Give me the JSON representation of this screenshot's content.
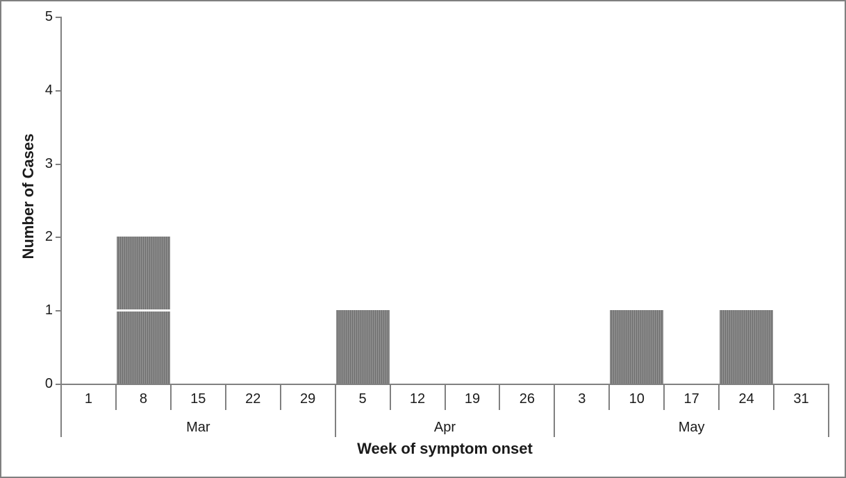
{
  "chart_data": {
    "type": "bar",
    "subtype": "epidemic-curve-stacked-unit-cases",
    "title": "",
    "xlabel": "Week of symptom onset",
    "ylabel": "Number of Cases",
    "ylim": [
      0,
      5
    ],
    "yticks": [
      0,
      1,
      2,
      3,
      4,
      5
    ],
    "grid": "off",
    "legend": "none",
    "categories": [
      "Mar 1",
      "Mar 8",
      "Mar 15",
      "Mar 22",
      "Mar 29",
      "Apr 5",
      "Apr 12",
      "Apr 19",
      "Apr 26",
      "May 3",
      "May 10",
      "May 17",
      "May 24",
      "May 31"
    ],
    "values": [
      0,
      2,
      0,
      0,
      0,
      1,
      0,
      0,
      0,
      0,
      1,
      0,
      1,
      0
    ],
    "months": [
      {
        "label": "Mar",
        "weeks": [
          {
            "label": "1",
            "cases": 0
          },
          {
            "label": "8",
            "cases": 2
          },
          {
            "label": "15",
            "cases": 0
          },
          {
            "label": "22",
            "cases": 0
          },
          {
            "label": "29",
            "cases": 0
          }
        ]
      },
      {
        "label": "Apr",
        "weeks": [
          {
            "label": "5",
            "cases": 1
          },
          {
            "label": "12",
            "cases": 0
          },
          {
            "label": "19",
            "cases": 0
          },
          {
            "label": "26",
            "cases": 0
          }
        ]
      },
      {
        "label": "May",
        "weeks": [
          {
            "label": "3",
            "cases": 0
          },
          {
            "label": "10",
            "cases": 1
          },
          {
            "label": "17",
            "cases": 0
          },
          {
            "label": "24",
            "cases": 1
          },
          {
            "label": "31",
            "cases": 0
          }
        ]
      }
    ],
    "colors": {
      "bar_stripe_light": "#8b8b8b",
      "bar_stripe_dark": "#6e6e6e",
      "bar_segment_divider": "#ffffff",
      "axis": "#808080",
      "frame_border": "#808080",
      "text": "#1a1a1a",
      "background": "#ffffff"
    }
  }
}
